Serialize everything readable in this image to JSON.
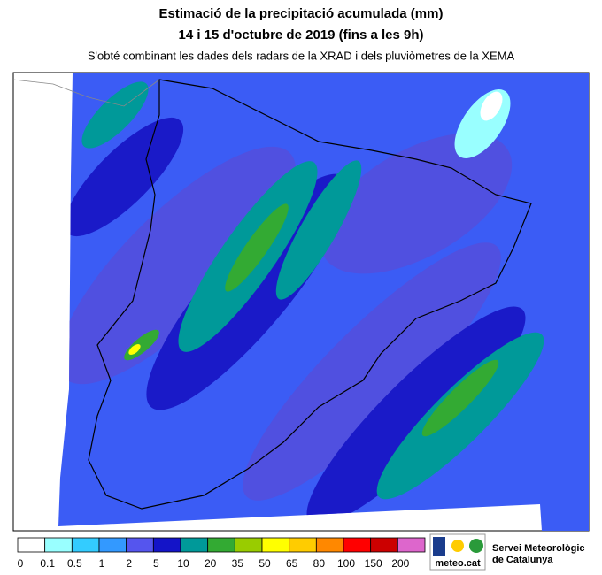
{
  "header": {
    "title": "Estimació de la precipitació acumulada (mm)",
    "period": "14 i 15 d'octubre de 2019 (fins a les 9h)",
    "subtitle": "S'obté combinant les dades dels radars de la XRAD i dels pluviòmetres de la XEMA"
  },
  "legend": {
    "thresholds": [
      0,
      0.1,
      0.5,
      1,
      2,
      5,
      10,
      20,
      35,
      50,
      65,
      80,
      100,
      150,
      200
    ],
    "colors": [
      "#ffffff",
      "#99ffff",
      "#33ccff",
      "#3399ff",
      "#5555ee",
      "#1414c8",
      "#009999",
      "#33aa33",
      "#99cc00",
      "#ffff00",
      "#ffcc00",
      "#ff8800",
      "#ff0000",
      "#cc0000",
      "#dd66cc"
    ]
  },
  "logo": {
    "brand": "meteo.cat",
    "org_line1": "Servei Meteorològic",
    "org_line2": "de Catalunya"
  }
}
